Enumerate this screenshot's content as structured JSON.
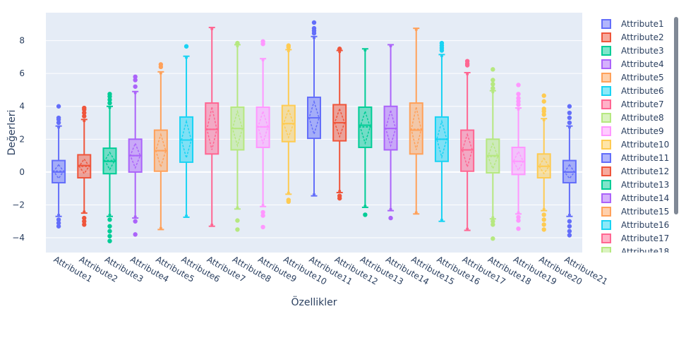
{
  "chart_data": {
    "type": "box",
    "xlabel": "Özellikler",
    "ylabel": "Değerleri",
    "ylim": [
      -4.9,
      9.7
    ],
    "yticks": [
      -4,
      -2,
      0,
      2,
      4,
      6,
      8
    ],
    "grid": true,
    "legend_position": "right",
    "legend_visible_count": 18,
    "categories": [
      "Attribute1",
      "Attribute2",
      "Attribute3",
      "Attribute4",
      "Attribute5",
      "Attribute6",
      "Attribute7",
      "Attribute8",
      "Attribute9",
      "Attribute10",
      "Attribute11",
      "Attribute12",
      "Attribute13",
      "Attribute14",
      "Attribute15",
      "Attribute16",
      "Attribute17",
      "Attribute18",
      "Attribute19",
      "Attribute20",
      "Attribute21"
    ],
    "series": [
      {
        "name": "Attribute1",
        "color": "#636efa",
        "q1": -0.65,
        "median": 0.0,
        "q3": 0.7,
        "mean": 0.05,
        "lower_fence": -2.7,
        "upper_fence": 2.8,
        "outliers": [
          -3.3,
          -3.1,
          -2.9,
          3.0,
          3.2,
          3.3,
          4.0
        ]
      },
      {
        "name": "Attribute2",
        "color": "#ef553b",
        "q1": -0.35,
        "median": 0.4,
        "q3": 1.05,
        "mean": 0.35,
        "lower_fence": -2.5,
        "upper_fence": 3.2,
        "outliers": [
          -3.2,
          -3.0,
          -2.8,
          3.4,
          3.6,
          3.8,
          3.9
        ]
      },
      {
        "name": "Attribute3",
        "color": "#00cc96",
        "q1": -0.1,
        "median": 0.65,
        "q3": 1.45,
        "mean": 0.7,
        "lower_fence": -2.7,
        "upper_fence": 4.0,
        "outliers": [
          -4.2,
          -3.9,
          -3.6,
          -3.3,
          -2.9,
          4.2,
          4.4,
          4.6,
          4.75
        ]
      },
      {
        "name": "Attribute4",
        "color": "#ab63fa",
        "q1": 0.0,
        "median": 1.0,
        "q3": 2.0,
        "mean": 1.0,
        "lower_fence": -2.8,
        "upper_fence": 4.9,
        "outliers": [
          -3.8,
          -3.0,
          5.2,
          5.6,
          5.8
        ]
      },
      {
        "name": "Attribute5",
        "color": "#ffa15a",
        "q1": 0.05,
        "median": 1.3,
        "q3": 2.55,
        "mean": 1.3,
        "lower_fence": -3.5,
        "upper_fence": 6.1,
        "outliers": [
          6.4,
          6.55
        ]
      },
      {
        "name": "Attribute6",
        "color": "#19d3f3",
        "q1": 0.6,
        "median": 1.95,
        "q3": 3.35,
        "mean": 1.95,
        "lower_fence": -2.75,
        "upper_fence": 7.05,
        "outliers": [
          7.65
        ]
      },
      {
        "name": "Attribute7",
        "color": "#ff6692",
        "q1": 1.1,
        "median": 2.6,
        "q3": 4.2,
        "mean": 2.6,
        "lower_fence": -3.3,
        "upper_fence": 8.8,
        "outliers": []
      },
      {
        "name": "Attribute8",
        "color": "#b6e880",
        "q1": 1.35,
        "median": 2.65,
        "q3": 3.95,
        "mean": 2.65,
        "lower_fence": -2.25,
        "upper_fence": 7.75,
        "outliers": [
          -3.5,
          -2.95,
          7.85
        ]
      },
      {
        "name": "Attribute9",
        "color": "#ff97ff",
        "q1": 1.5,
        "median": 2.75,
        "q3": 3.95,
        "mean": 2.75,
        "lower_fence": -2.1,
        "upper_fence": 6.9,
        "outliers": [
          -3.35,
          -2.65,
          -2.45,
          7.8,
          7.95
        ]
      },
      {
        "name": "Attribute10",
        "color": "#fecb52",
        "q1": 1.85,
        "median": 2.95,
        "q3": 4.05,
        "mean": 2.95,
        "lower_fence": -1.35,
        "upper_fence": 7.45,
        "outliers": [
          -1.7,
          -1.8,
          7.6,
          7.7
        ]
      },
      {
        "name": "Attribute11",
        "color": "#636efa",
        "q1": 2.05,
        "median": 3.3,
        "q3": 4.55,
        "mean": 3.3,
        "lower_fence": -1.45,
        "upper_fence": 8.25,
        "outliers": [
          8.45,
          8.6,
          8.75,
          9.1
        ]
      },
      {
        "name": "Attribute12",
        "color": "#ef553b",
        "q1": 1.9,
        "median": 3.0,
        "q3": 4.1,
        "mean": 3.0,
        "lower_fence": -1.25,
        "upper_fence": 7.4,
        "outliers": [
          -1.6,
          -1.45,
          7.5
        ]
      },
      {
        "name": "Attribute13",
        "color": "#00cc96",
        "q1": 1.5,
        "median": 2.85,
        "q3": 3.95,
        "mean": 2.75,
        "lower_fence": -2.15,
        "upper_fence": 7.5,
        "outliers": [
          -2.6
        ]
      },
      {
        "name": "Attribute14",
        "color": "#ab63fa",
        "q1": 1.35,
        "median": 2.65,
        "q3": 4.0,
        "mean": 2.65,
        "lower_fence": -2.35,
        "upper_fence": 7.75,
        "outliers": [
          -2.8
        ]
      },
      {
        "name": "Attribute15",
        "color": "#ffa15a",
        "q1": 1.1,
        "median": 2.55,
        "q3": 4.2,
        "mean": 2.6,
        "lower_fence": -2.55,
        "upper_fence": 8.75,
        "outliers": []
      },
      {
        "name": "Attribute16",
        "color": "#19d3f3",
        "q1": 0.65,
        "median": 2.0,
        "q3": 3.35,
        "mean": 2.0,
        "lower_fence": -3.0,
        "upper_fence": 7.15,
        "outliers": [
          7.4,
          7.55,
          7.7,
          7.85
        ]
      },
      {
        "name": "Attribute17",
        "color": "#ff6692",
        "q1": 0.05,
        "median": 1.35,
        "q3": 2.55,
        "mean": 1.35,
        "lower_fence": -3.55,
        "upper_fence": 6.05,
        "outliers": [
          6.5,
          6.6,
          6.75
        ]
      },
      {
        "name": "Attribute18",
        "color": "#b6e880",
        "q1": -0.05,
        "median": 1.0,
        "q3": 2.0,
        "mean": 0.95,
        "lower_fence": -2.85,
        "upper_fence": 4.95,
        "outliers": [
          -4.05,
          -3.2,
          -3.0,
          5.1,
          5.35,
          5.6,
          6.25
        ]
      },
      {
        "name": "Attribute19",
        "color": "#ff97ff",
        "q1": -0.15,
        "median": 0.65,
        "q3": 1.5,
        "mean": 0.65,
        "lower_fence": -2.55,
        "upper_fence": 3.9,
        "outliers": [
          -3.45,
          -2.95,
          -2.75,
          4.1,
          4.3,
          4.5,
          4.75,
          5.3
        ]
      },
      {
        "name": "Attribute20",
        "color": "#fecb52",
        "q1": -0.35,
        "median": 0.35,
        "q3": 1.1,
        "mean": 0.35,
        "lower_fence": -2.35,
        "upper_fence": 3.25,
        "outliers": [
          -3.5,
          -3.2,
          -2.9,
          -2.6,
          3.5,
          3.7,
          3.85,
          4.3,
          4.65
        ]
      },
      {
        "name": "Attribute21",
        "color": "#636efa",
        "q1": -0.65,
        "median": 0.0,
        "q3": 0.7,
        "mean": 0.0,
        "lower_fence": -2.7,
        "upper_fence": 2.8,
        "outliers": [
          -3.85,
          -3.6,
          -3.3,
          -3.0,
          3.0,
          3.3,
          3.6,
          4.0
        ]
      }
    ]
  }
}
